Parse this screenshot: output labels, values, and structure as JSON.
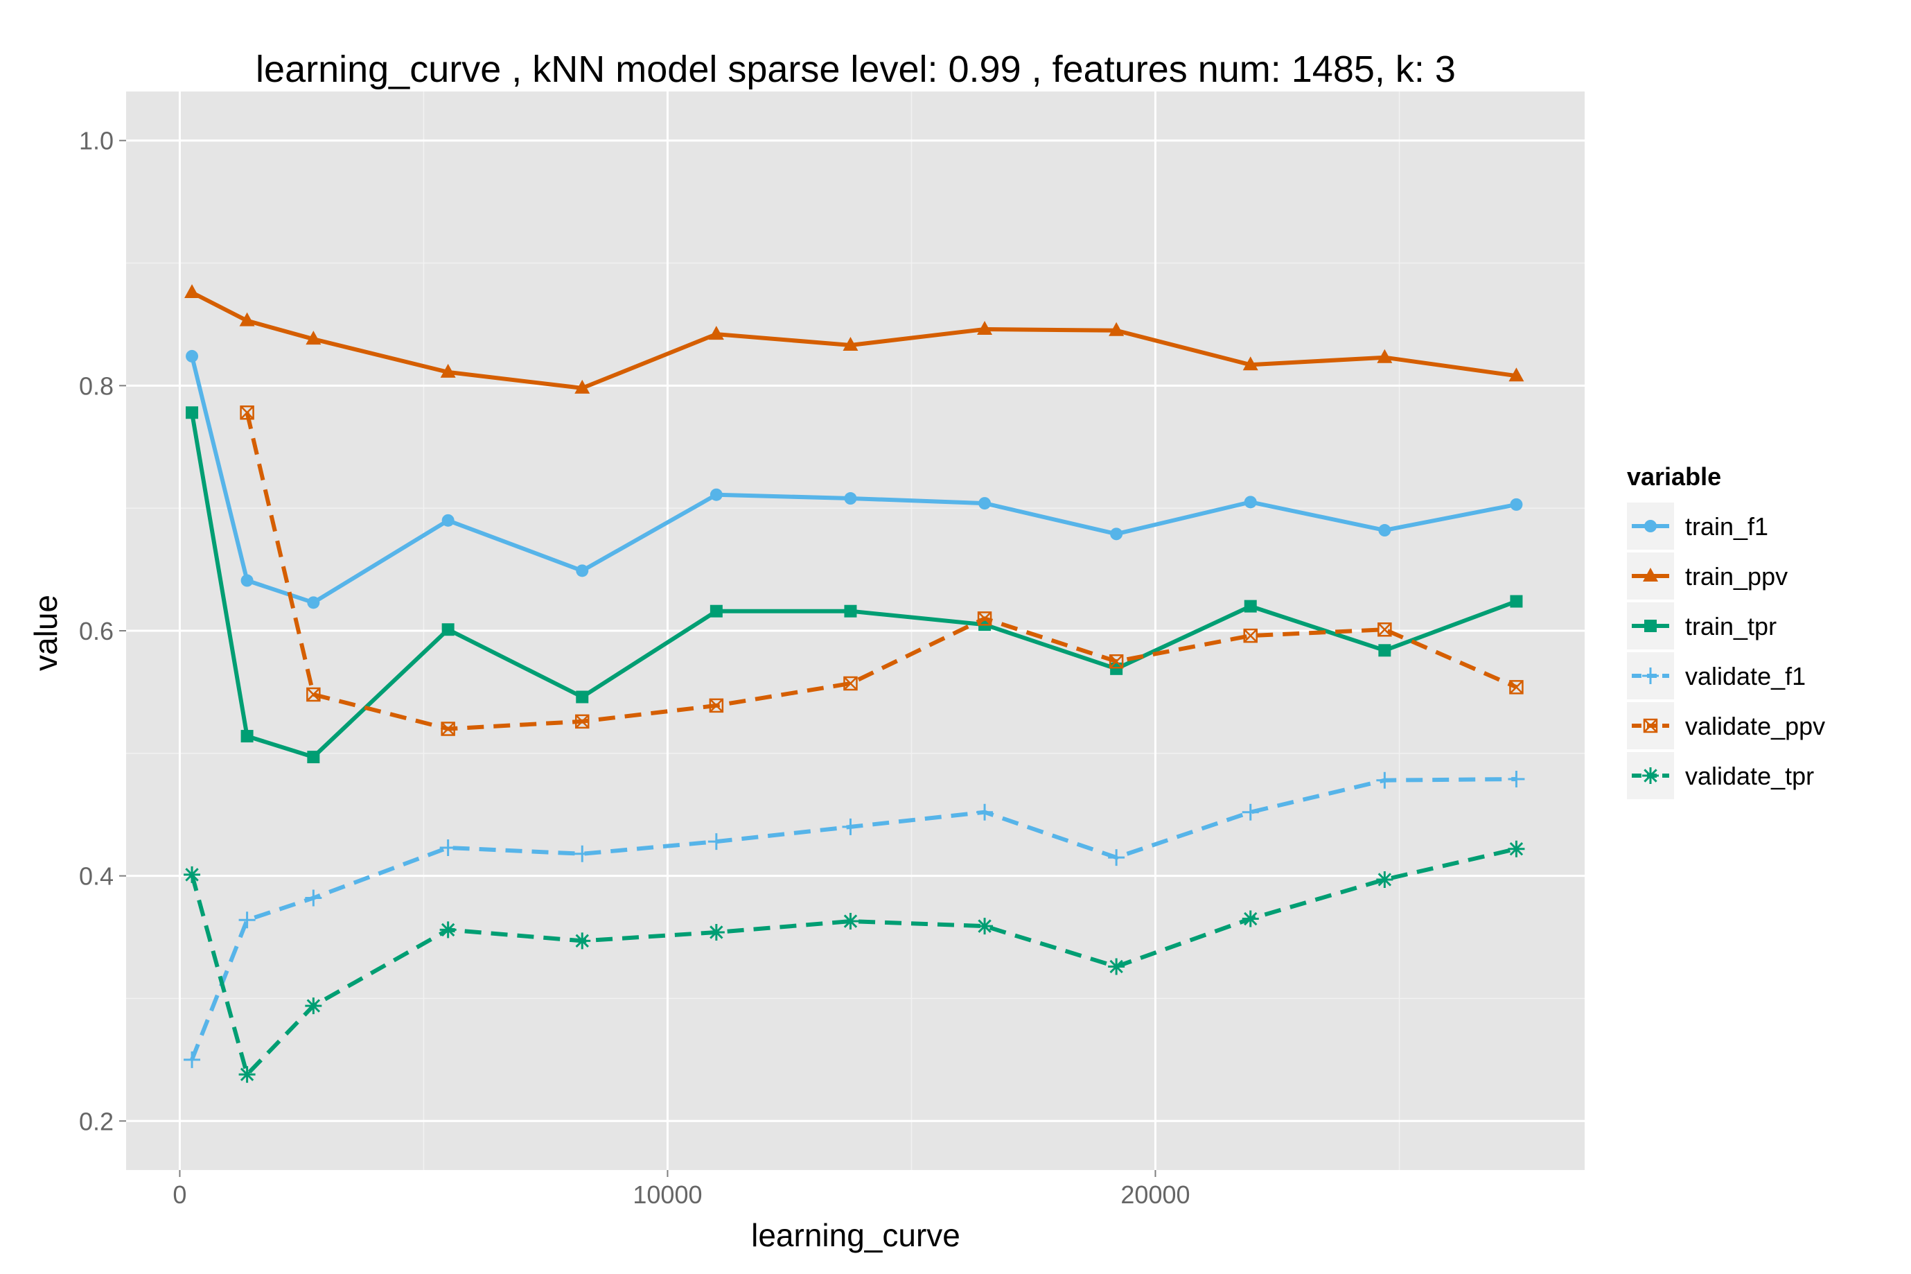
{
  "chart_data": {
    "type": "line",
    "title": "learning_curve ,  kNN model sparse level: 0.99 , features num: 1485, k: 3",
    "xlabel": "learning_curve",
    "ylabel": "value",
    "xlim": [
      -1100,
      28800
    ],
    "ylim": [
      0.16,
      1.04
    ],
    "xticks": [
      0,
      10000,
      20000
    ],
    "yticks": [
      0.2,
      0.4,
      0.6,
      0.8,
      1.0
    ],
    "x_tick_labels": [
      "0",
      "10000",
      "20000"
    ],
    "y_tick_labels": [
      "0.2",
      "0.4",
      "0.6",
      "0.8",
      "1.0"
    ],
    "grid": true,
    "legend": {
      "title": "variable",
      "position": "right"
    },
    "x": [
      250,
      1380,
      2740,
      5500,
      8250,
      11000,
      13750,
      16500,
      19200,
      21950,
      24700,
      27400
    ],
    "series": [
      {
        "name": "train_f1",
        "color": "#56B4E9",
        "dash": "solid",
        "marker": "circle",
        "values": [
          0.824,
          0.641,
          0.623,
          0.69,
          0.649,
          0.711,
          0.708,
          0.704,
          0.679,
          0.705,
          0.682,
          0.703
        ]
      },
      {
        "name": "train_ppv",
        "color": "#D55E00",
        "dash": "solid",
        "marker": "triangle",
        "values": [
          0.876,
          0.853,
          0.838,
          0.811,
          0.798,
          0.842,
          0.833,
          0.846,
          0.845,
          0.817,
          0.823,
          0.808
        ]
      },
      {
        "name": "train_tpr",
        "color": "#009E73",
        "dash": "solid",
        "marker": "square",
        "values": [
          0.778,
          0.514,
          0.497,
          0.601,
          0.546,
          0.616,
          0.616,
          0.605,
          0.569,
          0.62,
          0.584,
          0.624
        ]
      },
      {
        "name": "validate_f1",
        "color": "#56B4E9",
        "dash": "dashed",
        "marker": "plus",
        "values": [
          0.25,
          0.364,
          0.382,
          0.423,
          0.418,
          0.428,
          0.44,
          0.452,
          0.415,
          0.452,
          0.478,
          0.479
        ]
      },
      {
        "name": "validate_ppv",
        "color": "#D55E00",
        "dash": "dashed",
        "marker": "boxcross",
        "values": [
          null,
          0.778,
          0.548,
          0.52,
          0.526,
          0.539,
          0.557,
          0.61,
          0.575,
          0.596,
          0.601,
          0.554
        ]
      },
      {
        "name": "validate_tpr",
        "color": "#009E73",
        "dash": "dashed",
        "marker": "asterisk",
        "values": [
          0.401,
          0.238,
          0.294,
          0.356,
          0.347,
          0.354,
          0.363,
          0.359,
          0.326,
          0.365,
          0.397,
          0.422
        ]
      }
    ]
  }
}
